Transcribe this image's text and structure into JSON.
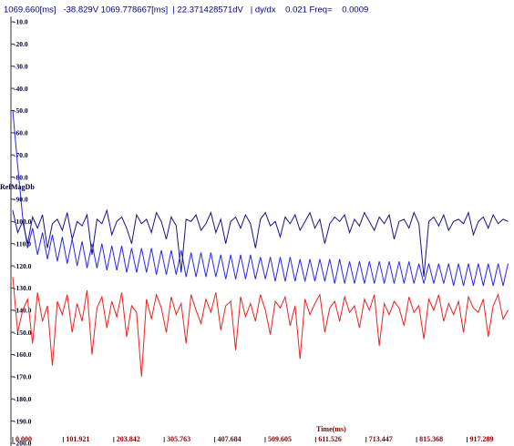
{
  "chart_data": {
    "type": "line",
    "title": "1069.660[ms]   -38.829V 1069.778667[ms]  | 22.371428571dV   | dy/dx    0.021 Freq=    0.0009",
    "y_label": "RefMagDb",
    "x_label": "Time(ms)",
    "xlim": [
      0,
      1012
    ],
    "ylim": [
      -200,
      -10
    ],
    "xticks": [
      {
        "value": 0,
        "label": "0.000"
      },
      {
        "value": 101.921,
        "label": "101.921"
      },
      {
        "value": 203.842,
        "label": "203.842"
      },
      {
        "value": 305.763,
        "label": "305.763"
      },
      {
        "value": 407.684,
        "label": "407.684"
      },
      {
        "value": 509.605,
        "label": "509.605"
      },
      {
        "value": 611.526,
        "label": "611.526"
      },
      {
        "value": 713.447,
        "label": "713.447"
      },
      {
        "value": 815.368,
        "label": "815.368"
      },
      {
        "value": 917.289,
        "label": "917.289"
      }
    ],
    "yticks": [
      {
        "value": -10,
        "label": "-10.0"
      },
      {
        "value": -20,
        "label": "-20.0"
      },
      {
        "value": -30,
        "label": "-30.0"
      },
      {
        "value": -40,
        "label": "-40.0"
      },
      {
        "value": -50,
        "label": "-50.0"
      },
      {
        "value": -60,
        "label": "-60.0"
      },
      {
        "value": -70,
        "label": "-70.0"
      },
      {
        "value": -80,
        "label": "-80.0"
      },
      {
        "value": -90,
        "label": "-90.0"
      },
      {
        "value": -100,
        "label": "-100.0"
      },
      {
        "value": -110,
        "label": "-110.0"
      },
      {
        "value": -120,
        "label": "-120.0"
      },
      {
        "value": -130,
        "label": "-130.0"
      },
      {
        "value": -140,
        "label": "-140.0"
      },
      {
        "value": -150,
        "label": "-150.0"
      },
      {
        "value": -160,
        "label": "-160.0"
      },
      {
        "value": -170,
        "label": "-170.0"
      },
      {
        "value": -180,
        "label": "-180.0"
      },
      {
        "value": -190,
        "label": "-190.0"
      },
      {
        "value": -200,
        "label": "-200.0"
      }
    ],
    "x": [
      0,
      10,
      20,
      30,
      40,
      50,
      60,
      70,
      80,
      90,
      100,
      110,
      120,
      130,
      140,
      150,
      160,
      170,
      180,
      190,
      200,
      210,
      220,
      230,
      240,
      250,
      260,
      270,
      280,
      290,
      300,
      310,
      320,
      330,
      340,
      350,
      360,
      370,
      380,
      390,
      400,
      410,
      420,
      430,
      440,
      450,
      460,
      470,
      480,
      490,
      500,
      510,
      520,
      530,
      540,
      550,
      560,
      570,
      580,
      590,
      600,
      610,
      620,
      630,
      640,
      650,
      660,
      670,
      680,
      690,
      700,
      710,
      720,
      730,
      740,
      750,
      760,
      770,
      780,
      790,
      800,
      810,
      820,
      830,
      840,
      850,
      860,
      870,
      880,
      890,
      900,
      910,
      920,
      930,
      940,
      950,
      960,
      970,
      980,
      990,
      1000
    ],
    "series": [
      {
        "color": "#ee2020",
        "values": [
          -125,
          -150,
          -140,
          -135,
          -155,
          -132,
          -145,
          -138,
          -165,
          -136,
          -142,
          -133,
          -150,
          -137,
          -145,
          -131,
          -160,
          -139,
          -134,
          -148,
          -136,
          -143,
          -132,
          -152,
          -138,
          -141,
          -170,
          -135,
          -144,
          -133,
          -139,
          -150,
          -134,
          -142,
          -137,
          -155,
          -133,
          -140,
          -146,
          -135,
          -141,
          -132,
          -149,
          -138,
          -136,
          -158,
          -134,
          -143,
          -137,
          -145,
          -133,
          -140,
          -151,
          -136,
          -139,
          -134,
          -147,
          -138,
          -162,
          -135,
          -142,
          -137,
          -133,
          -150,
          -139,
          -136,
          -145,
          -134,
          -141,
          -138,
          -148,
          -135,
          -140,
          -133,
          -156,
          -137,
          -142,
          -136,
          -139,
          -147,
          -134,
          -141,
          -138,
          -153,
          -135,
          -140,
          -133,
          -145,
          -137,
          -142,
          -136,
          -150,
          -134,
          -139,
          -141,
          -135,
          -152,
          -138,
          -133,
          -144,
          -140
        ]
      },
      {
        "color": "#2828e8",
        "values": [
          -50,
          -75,
          -98,
          -112,
          -103,
          -115,
          -105,
          -117,
          -106,
          -118,
          -107,
          -119,
          -108,
          -120,
          -109,
          -121,
          -110,
          -121,
          -110,
          -122,
          -111,
          -122,
          -111,
          -123,
          -112,
          -123,
          -112,
          -123,
          -112,
          -124,
          -113,
          -124,
          -113,
          -124,
          -113,
          -125,
          -114,
          -125,
          -114,
          -125,
          -114,
          -125,
          -115,
          -126,
          -115,
          -126,
          -115,
          -126,
          -115,
          -126,
          -116,
          -126,
          -116,
          -127,
          -116,
          -127,
          -116,
          -127,
          -117,
          -127,
          -117,
          -127,
          -117,
          -127,
          -117,
          -128,
          -117,
          -128,
          -118,
          -128,
          -118,
          -128,
          -118,
          -128,
          -118,
          -128,
          -118,
          -128,
          -118,
          -128,
          -118,
          -128,
          -119,
          -128,
          -119,
          -128,
          -119,
          -128,
          -119,
          -129,
          -119,
          -129,
          -119,
          -129,
          -119,
          -129,
          -119,
          -129,
          -119,
          -129,
          -119
        ]
      },
      {
        "color": "#14148a",
        "values": [
          -95,
          -105,
          -100,
          -110,
          -98,
          -103,
          -97,
          -112,
          -101,
          -99,
          -104,
          -96,
          -108,
          -100,
          -102,
          -97,
          -115,
          -99,
          -101,
          -95,
          -106,
          -100,
          -98,
          -103,
          -110,
          -97,
          -101,
          -99,
          -105,
          -96,
          -100,
          -108,
          -98,
          -102,
          -123,
          -99,
          -100,
          -97,
          -104,
          -101,
          -96,
          -105,
          -99,
          -110,
          -100,
          -98,
          -103,
          -97,
          -101,
          -112,
          -99,
          -96,
          -102,
          -100,
          -107,
          -98,
          -101,
          -97,
          -104,
          -100,
          -96,
          -103,
          -99,
          -110,
          -101,
          -98,
          -100,
          -97,
          -105,
          -99,
          -102,
          -96,
          -100,
          -104,
          -98,
          -101,
          -97,
          -108,
          -100,
          -99,
          -103,
          -96,
          -101,
          -125,
          -100,
          -98,
          -102,
          -97,
          -104,
          -100,
          -99,
          -101,
          -96,
          -106,
          -100,
          -98,
          -103,
          -97,
          -101,
          -99,
          -100
        ]
      }
    ]
  }
}
